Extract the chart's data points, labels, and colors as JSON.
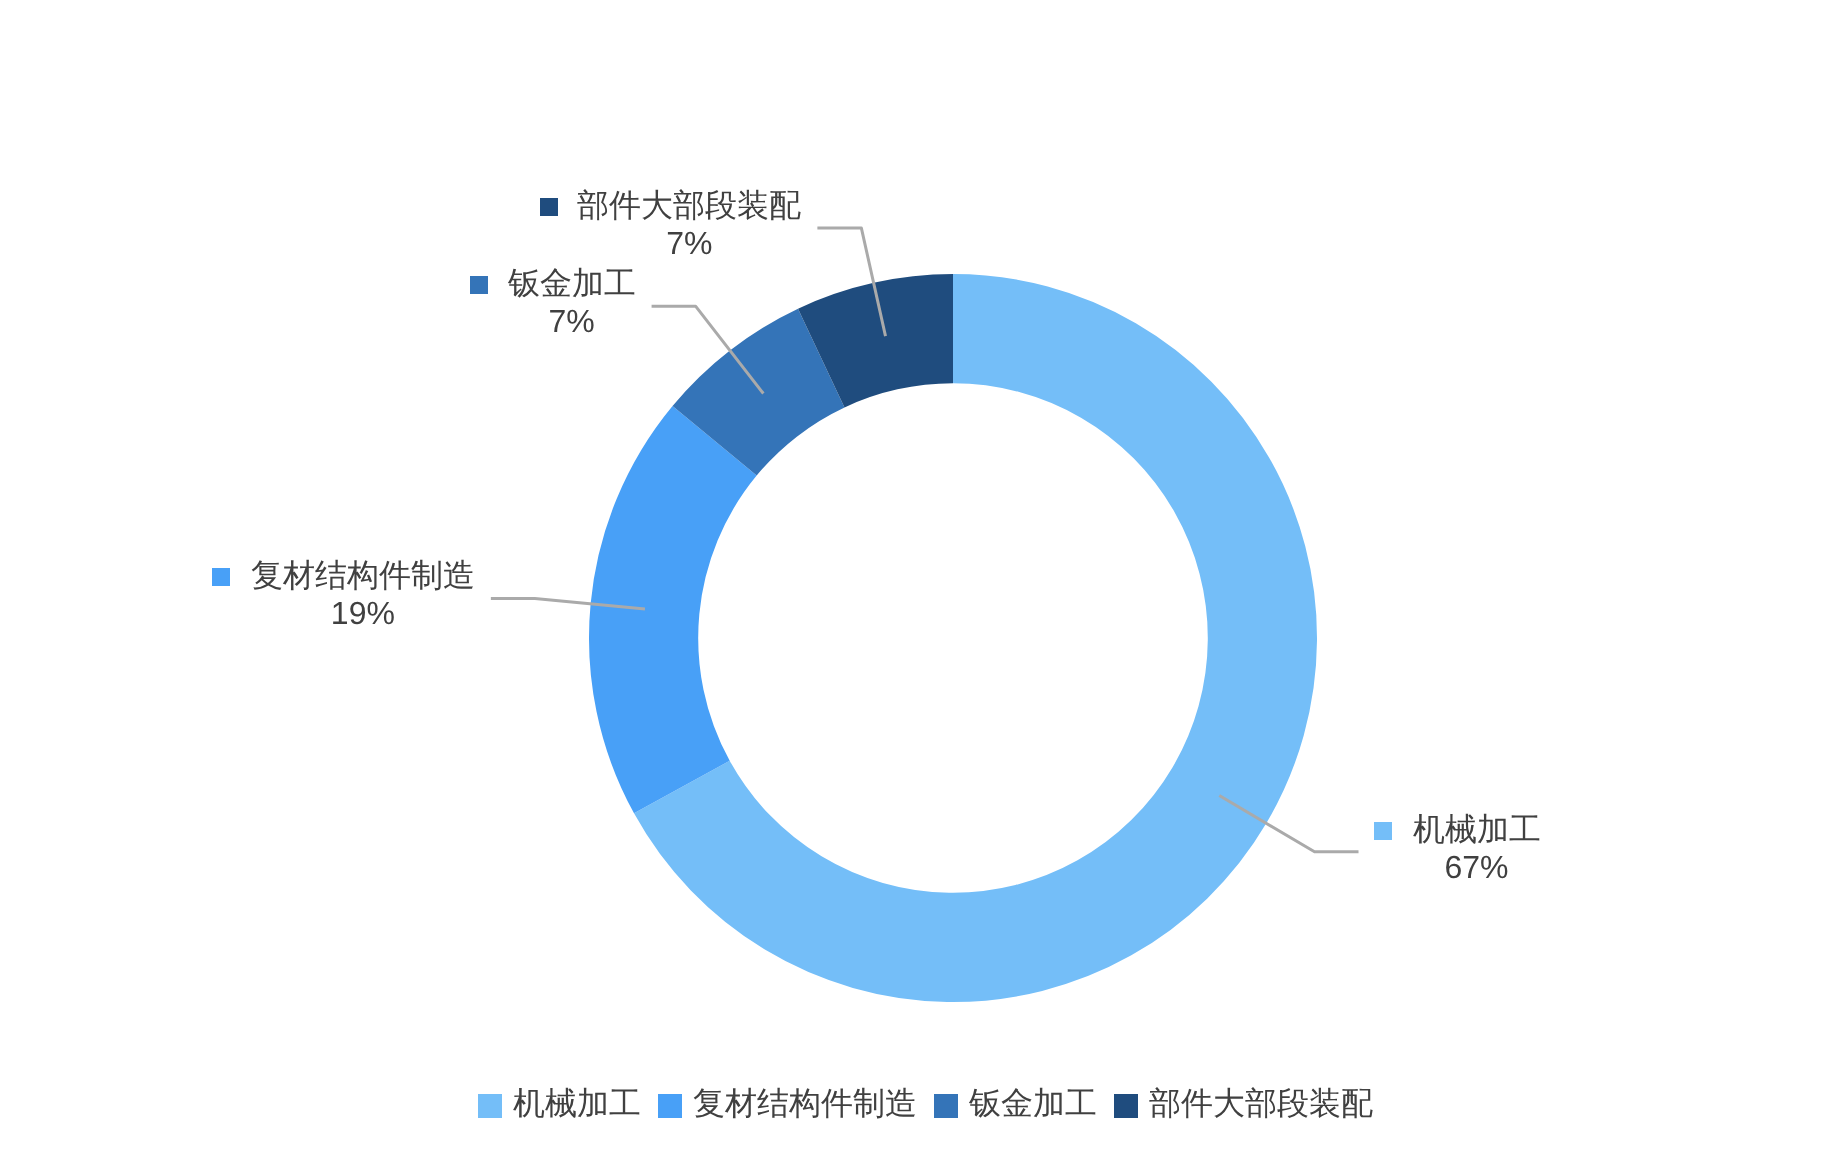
{
  "chart_data": {
    "type": "donut",
    "categories": [
      "机械加工",
      "复材结构件制造",
      "钣金加工",
      "部件大部段装配"
    ],
    "values": [
      67,
      19,
      7,
      7
    ],
    "value_labels": [
      "67%",
      "19%",
      "7%",
      "7%"
    ],
    "colors": [
      "#74bef8",
      "#48a0f7",
      "#3474b8",
      "#1f4c7e"
    ],
    "legend": "bottom"
  }
}
